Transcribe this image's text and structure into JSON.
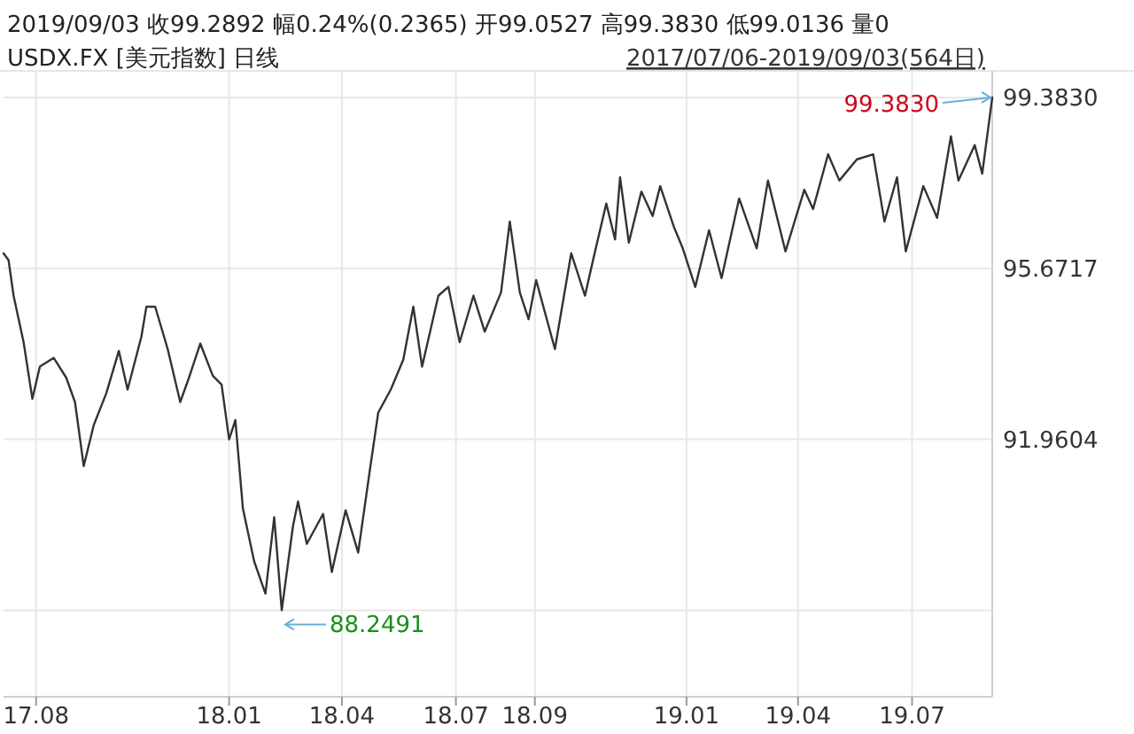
{
  "chart_data": {
    "type": "line",
    "title": "USDX.FX [美元指数] 日线",
    "annotations": [
      "2019/09/03  收99.2892  幅0.24%(0.2365)  开99.0527  高99.3830  低99.0136  量0",
      "2017/07/06-2019/09/03(564日)",
      {
        "text": "99.3830",
        "x": "2019-09-03",
        "y": 99.383
      },
      {
        "text": "88.2491",
        "x": "2018-02-13",
        "y": 88.2491
      }
    ],
    "xlim": [
      "2017-07-06",
      "2019-09-03"
    ],
    "xticks": [
      {
        "value": "2017-08-01",
        "label": "17.08"
      },
      {
        "value": "2018-01-02",
        "label": "18.01"
      },
      {
        "value": "2018-04-02",
        "label": "18.04"
      },
      {
        "value": "2018-07-02",
        "label": "18.07"
      },
      {
        "value": "2018-09-03",
        "label": "18.09"
      },
      {
        "value": "2019-01-02",
        "label": "19.01"
      },
      {
        "value": "2019-04-01",
        "label": "19.04"
      },
      {
        "value": "2019-07-01",
        "label": "19.07"
      }
    ],
    "ylim": [
      86.37,
      99.96
    ],
    "yticks": [
      {
        "value": 88.2491,
        "label": null
      },
      91.9604,
      95.6717,
      {
        "value": 99.383,
        "label": "99.3830"
      }
    ],
    "grid": true,
    "series": [
      {
        "color": "#333333",
        "x": [
          "2017-07-06",
          "2017-07-10",
          "2017-07-14",
          "2017-07-22",
          "2017-07-29",
          "2017-08-04",
          "2017-08-15",
          "2017-08-25",
          "2017-09-01",
          "2017-09-08",
          "2017-09-16",
          "2017-09-26",
          "2017-10-06",
          "2017-10-13",
          "2017-10-24",
          "2017-10-28",
          "2017-11-04",
          "2017-11-14",
          "2017-11-24",
          "2017-12-01",
          "2017-12-10",
          "2017-12-20",
          "2017-12-27",
          "2018-01-02",
          "2018-01-07",
          "2018-01-13",
          "2018-01-22",
          "2018-01-31",
          "2018-02-07",
          "2018-02-13",
          "2018-02-22",
          "2018-02-26",
          "2018-03-05",
          "2018-03-18",
          "2018-03-25",
          "2018-04-05",
          "2018-04-15",
          "2018-04-24",
          "2018-05-01",
          "2018-05-11",
          "2018-05-21",
          "2018-05-29",
          "2018-06-05",
          "2018-06-18",
          "2018-06-26",
          "2018-07-05",
          "2018-07-16",
          "2018-07-25",
          "2018-08-07",
          "2018-08-14",
          "2018-08-22",
          "2018-08-29",
          "2018-09-04",
          "2018-09-19",
          "2018-10-02",
          "2018-10-13",
          "2018-10-20",
          "2018-10-30",
          "2018-11-06",
          "2018-11-10",
          "2018-11-17",
          "2018-11-27",
          "2018-12-06",
          "2018-12-12",
          "2018-12-23",
          "2018-12-30",
          "2019-01-09",
          "2019-01-20",
          "2019-01-30",
          "2019-02-13",
          "2019-02-27",
          "2019-03-08",
          "2019-03-22",
          "2019-04-06",
          "2019-04-13",
          "2019-04-25",
          "2019-05-04",
          "2019-05-18",
          "2019-05-31",
          "2019-06-09",
          "2019-06-19",
          "2019-06-26",
          "2019-07-10",
          "2019-07-21",
          "2019-08-01",
          "2019-08-07",
          "2019-08-20",
          "2019-08-26",
          "2019-09-03"
        ],
        "values": [
          96.0,
          95.85,
          95.08,
          94.07,
          92.84,
          93.54,
          93.73,
          93.3,
          92.77,
          91.38,
          92.27,
          92.96,
          93.88,
          93.04,
          94.19,
          94.84,
          94.84,
          93.92,
          92.77,
          93.3,
          94.04,
          93.34,
          93.15,
          91.96,
          92.38,
          90.46,
          89.31,
          88.61,
          90.27,
          88.2491,
          90.08,
          90.61,
          89.69,
          90.34,
          89.08,
          90.42,
          89.5,
          91.23,
          92.54,
          93.04,
          93.69,
          94.84,
          93.54,
          95.08,
          95.27,
          94.07,
          95.08,
          94.3,
          95.15,
          96.69,
          95.15,
          94.57,
          95.42,
          93.92,
          96.0,
          95.08,
          95.92,
          97.08,
          96.3,
          97.65,
          96.23,
          97.34,
          96.81,
          97.46,
          96.57,
          96.11,
          95.27,
          96.5,
          95.46,
          97.19,
          96.11,
          97.58,
          96.04,
          97.38,
          96.96,
          98.15,
          97.58,
          98.04,
          98.15,
          96.69,
          97.65,
          96.04,
          97.46,
          96.77,
          98.54,
          97.58,
          98.35,
          97.73,
          99.383
        ]
      }
    ]
  }
}
